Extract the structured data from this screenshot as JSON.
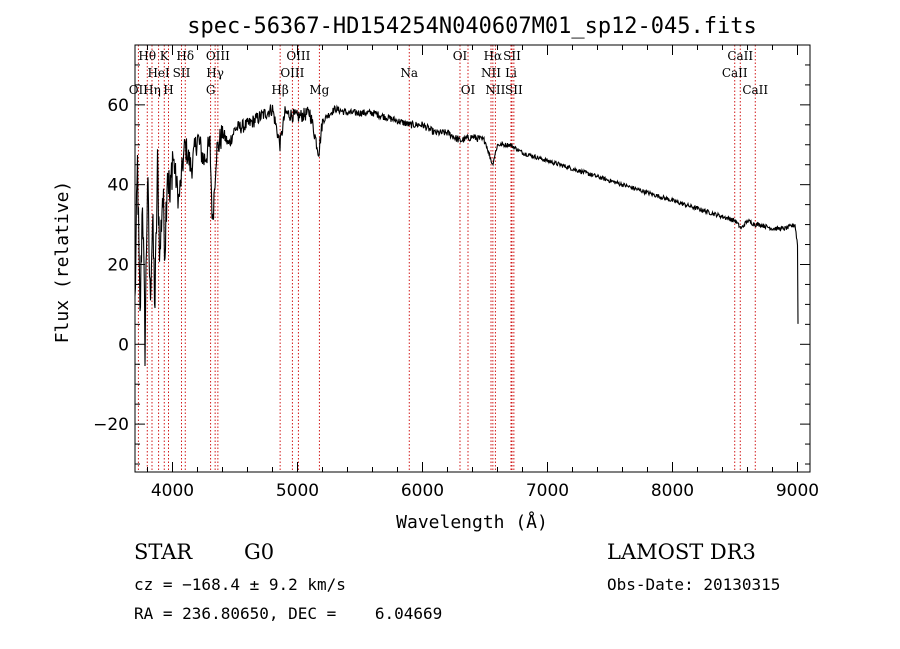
{
  "chart_data": {
    "type": "line",
    "title": "spec-56367-HD154254N040607M01_sp12-045.fits",
    "xlabel": "Wavelength (Å)",
    "ylabel": "Flux (relative)",
    "xlim": [
      3700,
      9100
    ],
    "ylim": [
      -32,
      75
    ],
    "xticks": [
      4000,
      5000,
      6000,
      7000,
      8000,
      9000
    ],
    "yticks": [
      -20,
      0,
      20,
      40,
      60
    ],
    "x_tick_labels": [
      "4000",
      "5000",
      "6000",
      "7000",
      "8000",
      "9000"
    ],
    "y_tick_labels": [
      "−20",
      "0",
      "20",
      "40",
      "60"
    ],
    "line_color": "#000000",
    "marker_color": "#cc0000",
    "series": [
      {
        "name": "flux",
        "x": [
          3700,
          3720,
          3740,
          3760,
          3780,
          3800,
          3820,
          3840,
          3860,
          3880,
          3900,
          3920,
          3940,
          3960,
          3980,
          4000,
          4050,
          4100,
          4150,
          4200,
          4250,
          4300,
          4320,
          4350,
          4400,
          4450,
          4500,
          4600,
          4700,
          4800,
          4860,
          4900,
          5000,
          5100,
          5170,
          5200,
          5300,
          5400,
          5500,
          5600,
          5700,
          5800,
          5900,
          6000,
          6100,
          6200,
          6300,
          6400,
          6500,
          6560,
          6600,
          6700,
          6800,
          6900,
          7000,
          7100,
          7200,
          7300,
          7400,
          7500,
          7600,
          7700,
          7800,
          7900,
          8000,
          8100,
          8200,
          8300,
          8400,
          8500,
          8550,
          8600,
          8660,
          8700,
          8800,
          8900,
          8980,
          9000,
          9005
        ],
        "y": [
          10,
          45,
          5,
          38,
          0,
          42,
          12,
          30,
          10,
          44,
          22,
          38,
          25,
          46,
          35,
          48,
          36,
          50,
          44,
          52,
          46,
          50,
          30,
          48,
          53,
          50,
          54,
          55,
          57,
          59,
          50,
          58,
          57,
          58,
          48,
          56,
          59,
          58,
          58,
          58,
          57,
          56,
          55,
          55,
          53,
          53,
          51,
          52,
          51,
          45,
          50,
          50,
          48,
          47,
          46,
          45,
          44,
          43,
          42,
          41,
          40,
          39,
          38,
          37,
          36,
          35,
          34,
          33,
          32,
          31,
          29,
          31,
          30,
          30,
          29,
          29,
          30,
          25,
          0
        ]
      }
    ],
    "line_markers": [
      {
        "name": "OII",
        "wavelength": 3727,
        "row": 3
      },
      {
        "name": "Hθ",
        "wavelength": 3798,
        "row": 1
      },
      {
        "name": "Hη",
        "wavelength": 3836,
        "row": 3
      },
      {
        "name": "HeI",
        "wavelength": 3889,
        "row": 2
      },
      {
        "name": "K",
        "wavelength": 3934,
        "row": 1
      },
      {
        "name": "H",
        "wavelength": 3968,
        "row": 3
      },
      {
        "name": "SII",
        "wavelength": 4072,
        "row": 2
      },
      {
        "name": "Hδ",
        "wavelength": 4102,
        "row": 1
      },
      {
        "name": "G",
        "wavelength": 4305,
        "row": 3
      },
      {
        "name": "Hγ",
        "wavelength": 4341,
        "row": 2
      },
      {
        "name": "OIII",
        "wavelength": 4363,
        "row": 1
      },
      {
        "name": "Hβ",
        "wavelength": 4861,
        "row": 3
      },
      {
        "name": "OIII",
        "wavelength": 4959,
        "row": 2
      },
      {
        "name": "OIII",
        "wavelength": 5007,
        "row": 1
      },
      {
        "name": "Mg",
        "wavelength": 5175,
        "row": 3
      },
      {
        "name": "Na",
        "wavelength": 5894,
        "row": 2
      },
      {
        "name": "OI",
        "wavelength": 6300,
        "row": 1
      },
      {
        "name": "OI",
        "wavelength": 6364,
        "row": 3
      },
      {
        "name": "NII",
        "wavelength": 6548,
        "row": 2
      },
      {
        "name": "Hα",
        "wavelength": 6563,
        "row": 1
      },
      {
        "name": "NII",
        "wavelength": 6583,
        "row": 3
      },
      {
        "name": "Li",
        "wavelength": 6708,
        "row": 2
      },
      {
        "name": "SII",
        "wavelength": 6716,
        "row": 1
      },
      {
        "name": "SII",
        "wavelength": 6731,
        "row": 3
      },
      {
        "name": "CaII",
        "wavelength": 8498,
        "row": 2
      },
      {
        "name": "CaII",
        "wavelength": 8542,
        "row": 1
      },
      {
        "name": "CaII",
        "wavelength": 8662,
        "row": 3
      }
    ]
  },
  "info": {
    "class_label": "STAR",
    "subclass_label": "G0",
    "survey_label": "LAMOST DR3",
    "redshift_text": "cz = −168.4 ± 9.2 km/s",
    "obs_date_text": "Obs-Date: 20130315",
    "coords_text": "RA = 236.80650, DEC =    6.04669"
  }
}
